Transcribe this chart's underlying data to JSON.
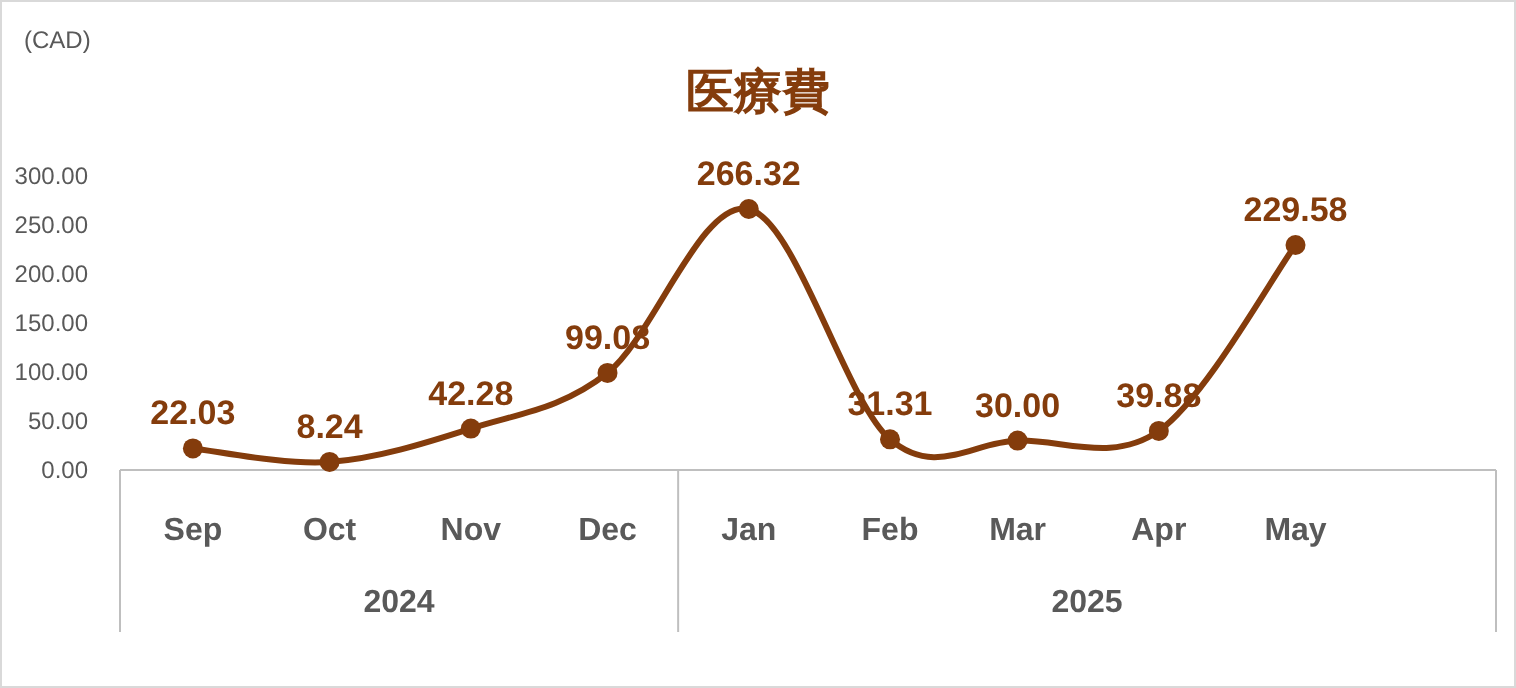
{
  "chart_data": {
    "type": "line",
    "title": "医療費",
    "ylabel": "(CAD)",
    "x": [
      "2024-09",
      "2024-10",
      "2024-11",
      "2024-12",
      "2025-01",
      "2025-02",
      "2025-03",
      "2025-04",
      "2025-05"
    ],
    "xlim": [
      "2024-08-16",
      "2025-06-14"
    ],
    "xticks": [
      {
        "value": "2024-09",
        "label": "Sep"
      },
      {
        "value": "2024-10",
        "label": "Oct"
      },
      {
        "value": "2024-11",
        "label": "Nov"
      },
      {
        "value": "2024-12",
        "label": "Dec"
      },
      {
        "value": "2025-01",
        "label": "Jan"
      },
      {
        "value": "2025-02",
        "label": "Feb"
      },
      {
        "value": "2025-03",
        "label": "Mar"
      },
      {
        "value": "2025-04",
        "label": "Apr"
      },
      {
        "value": "2025-05",
        "label": "May"
      }
    ],
    "ylim": [
      0,
      300
    ],
    "yticks": [
      {
        "value": 0,
        "label": "0.00"
      },
      {
        "value": 50,
        "label": "50.00"
      },
      {
        "value": 100,
        "label": "100.00"
      },
      {
        "value": 150,
        "label": "150.00"
      },
      {
        "value": 200,
        "label": "200.00"
      },
      {
        "value": 250,
        "label": "250.00"
      },
      {
        "value": 300,
        "label": "300.00"
      }
    ],
    "series": [
      {
        "color": "#843c0c",
        "values": [
          22.03,
          8.24,
          42.28,
          99.08,
          266.32,
          31.31,
          30.0,
          39.88,
          229.58
        ],
        "value_labels": [
          "22.03",
          "8.24",
          "42.28",
          "99.08",
          "266.32",
          "31.31",
          "30.00",
          "39.88",
          "229.58"
        ]
      }
    ],
    "annotations": [
      "2024",
      "2025"
    ],
    "marker": "circle",
    "line_style": "solid",
    "grid": false
  }
}
